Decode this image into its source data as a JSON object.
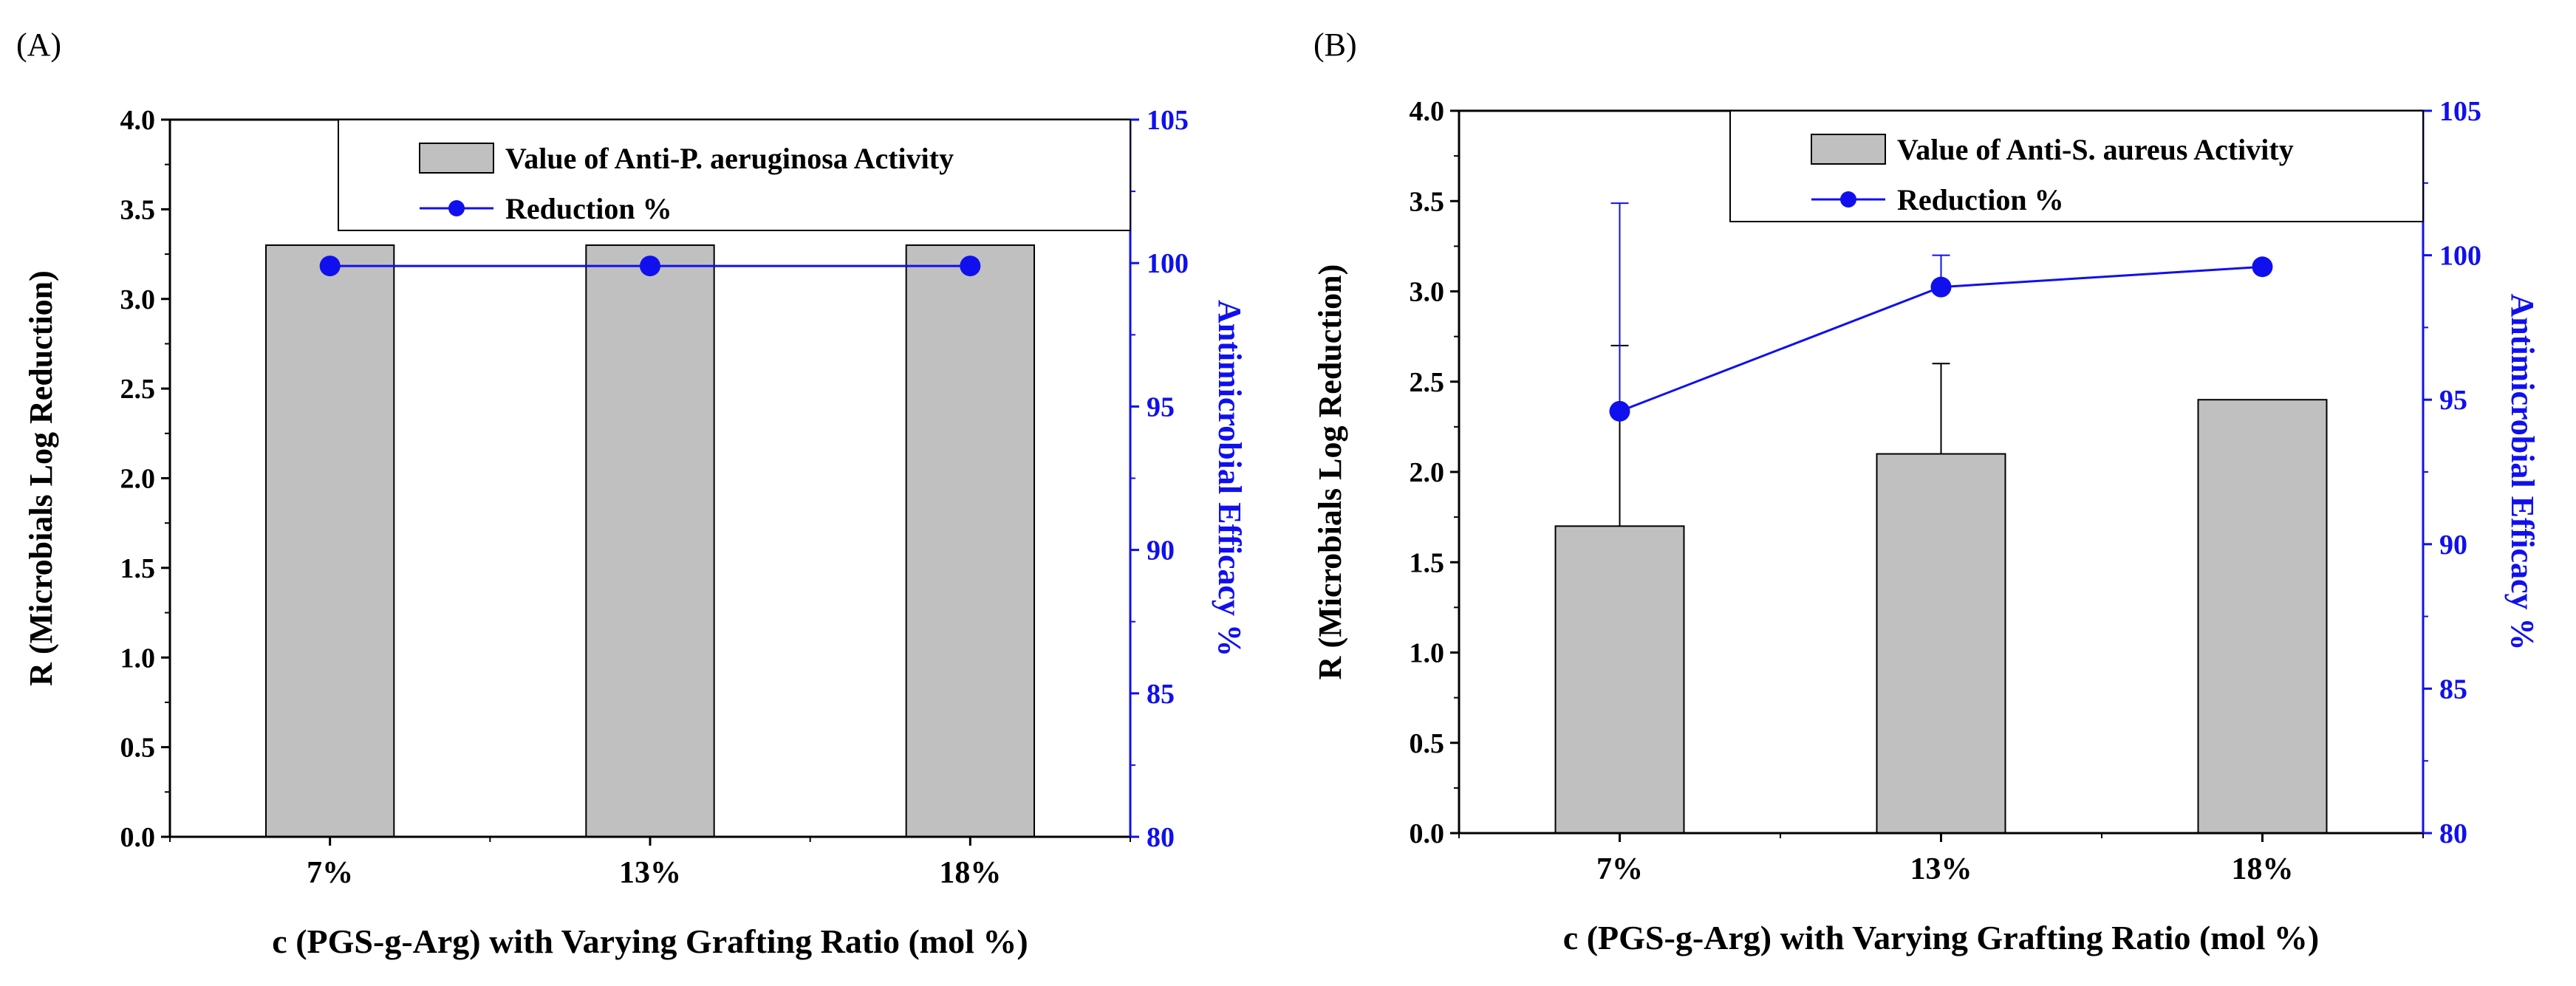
{
  "colors": {
    "bar_fill": "#c0c0c0",
    "bar_stroke": "#000000",
    "line": "#1010ee",
    "axis": "#000000",
    "right_axis": "#1010ee"
  },
  "chart_data": [
    {
      "panel_label": "(A)",
      "type": "bar",
      "categories": [
        "7%",
        "13%",
        "18%"
      ],
      "xlabel": "c (PGS-g-Arg) with Varying Grafting Ratio (mol %)",
      "ylabel": "R (Microbials Log Reduction)",
      "ylim": [
        0,
        4
      ],
      "yticks": [
        "0.0",
        "0.5",
        "1.0",
        "1.5",
        "2.0",
        "2.5",
        "3.0",
        "3.5",
        "4.0"
      ],
      "y2label": "Antimicrobial Efficacy %",
      "y2lim": [
        80,
        105
      ],
      "y2ticks": [
        "80",
        "85",
        "90",
        "95",
        "100",
        "105"
      ],
      "series": [
        {
          "name": "Value of Anti-P. aeruginosa Activity",
          "kind": "bar",
          "axis": "left",
          "values": [
            3.3,
            3.3,
            3.3
          ],
          "errors": [
            0,
            0,
            0
          ]
        },
        {
          "name": "Reduction %",
          "kind": "line",
          "axis": "right",
          "values": [
            99.9,
            99.9,
            99.9
          ],
          "errors": [
            0,
            0,
            0
          ]
        }
      ],
      "legend": [
        "Value of Anti-P. aeruginosa Activity",
        "Reduction %"
      ],
      "legend_position": "top-right"
    },
    {
      "panel_label": "(B)",
      "type": "bar",
      "categories": [
        "7%",
        "13%",
        "18%"
      ],
      "xlabel": "c (PGS-g-Arg) with Varying Grafting Ratio (mol %)",
      "ylabel": "R (Microbials Log Reduction)",
      "ylim": [
        0,
        4
      ],
      "yticks": [
        "0.0",
        "0.5",
        "1.0",
        "1.5",
        "2.0",
        "2.5",
        "3.0",
        "3.5",
        "4.0"
      ],
      "y2label": "Antimicrobial Efficacy %",
      "y2lim": [
        80,
        105
      ],
      "y2ticks": [
        "80",
        "85",
        "90",
        "95",
        "100",
        "105"
      ],
      "series": [
        {
          "name": "Value of Anti-S. aureus Activity",
          "kind": "bar",
          "axis": "left",
          "values": [
            1.7,
            2.1,
            2.4
          ],
          "errors": [
            1.0,
            0.5,
            0
          ]
        },
        {
          "name": "Reduction %",
          "kind": "line",
          "axis": "right",
          "values": [
            94.6,
            98.9,
            99.6
          ],
          "errors": [
            7.2,
            1.1,
            0
          ]
        }
      ],
      "legend": [
        "Value of Anti-S. aureus Activity",
        "Reduction %"
      ],
      "legend_position": "top-right"
    }
  ]
}
